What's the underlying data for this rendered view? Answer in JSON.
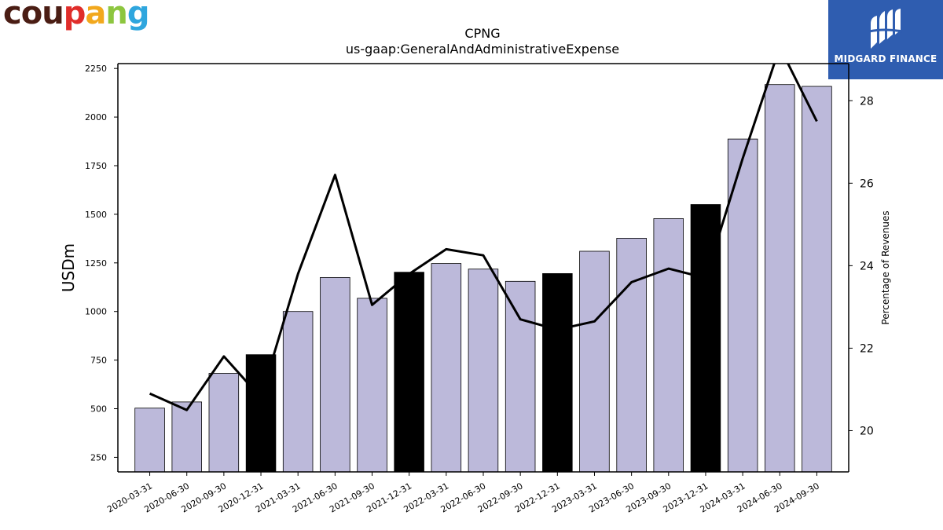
{
  "branding": {
    "left_logo_letters": [
      {
        "ch": "c",
        "color": "#4a1d14"
      },
      {
        "ch": "o",
        "color": "#4a1d14"
      },
      {
        "ch": "u",
        "color": "#4a1d14"
      },
      {
        "ch": "p",
        "color": "#e02d2a"
      },
      {
        "ch": "a",
        "color": "#f2a81d"
      },
      {
        "ch": "n",
        "color": "#8dc63f"
      },
      {
        "ch": "g",
        "color": "#2fa6de"
      }
    ],
    "right_logo_text": "MIDGARD FINANCE",
    "right_logo_bg": "#2f5db0"
  },
  "chart_data": {
    "type": "bar",
    "title": "CPNG",
    "subtitle": "us-gaap:GeneralAndAdministrativeExpense",
    "ylabel": "USDm",
    "y2label": "Percentage of Revenues",
    "ylim": [
      175,
      2275
    ],
    "y2lim": [
      19.0,
      28.9
    ],
    "yticks": [
      250,
      500,
      750,
      1000,
      1250,
      1500,
      1750,
      2000,
      2250
    ],
    "y2ticks": [
      20,
      22,
      24,
      26,
      28
    ],
    "categories": [
      "2020-03-31",
      "2020-06-30",
      "2020-09-30",
      "2020-12-31",
      "2021-03-31",
      "2021-06-30",
      "2021-09-30",
      "2021-12-31",
      "2022-03-31",
      "2022-06-30",
      "2022-09-30",
      "2022-12-31",
      "2023-03-31",
      "2023-06-30",
      "2023-09-30",
      "2023-12-31",
      "2024-03-31",
      "2024-06-30",
      "2024-09-30"
    ],
    "series": [
      {
        "kind": "bar",
        "values": [
          503,
          535,
          682,
          778,
          1000,
          1175,
          1068,
          1202,
          1247,
          1218,
          1155,
          1195,
          1310,
          1377,
          1478,
          1550,
          1887,
          2167,
          2158
        ],
        "highlight": [
          false,
          false,
          false,
          true,
          false,
          false,
          false,
          true,
          false,
          false,
          false,
          true,
          false,
          false,
          false,
          true,
          false,
          false,
          false
        ],
        "color": "#bcb9da",
        "highlight_color": "#000000"
      },
      {
        "kind": "line",
        "axis": "right",
        "values": [
          20.9,
          20.5,
          21.8,
          20.8,
          23.8,
          26.2,
          23.05,
          23.8,
          24.4,
          24.25,
          22.7,
          22.45,
          22.65,
          23.6,
          23.93,
          23.7,
          26.6,
          29.3,
          27.5
        ],
        "color": "#000000"
      }
    ],
    "grid": false
  }
}
